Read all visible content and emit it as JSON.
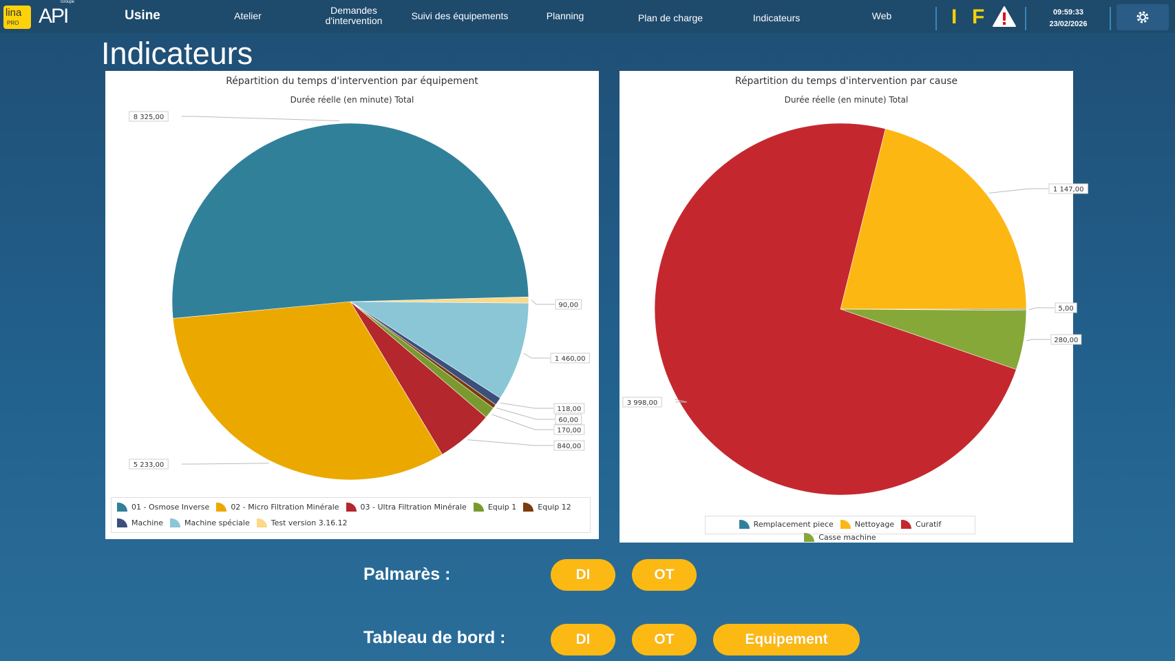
{
  "header": {
    "logo_lina": "lina",
    "logo_pro": "PRO",
    "logo_api": "API",
    "logo_groupe": "Groupe",
    "site": "Usine",
    "nav": [
      "Atelier",
      "Demandes d'intervention",
      "Suivi des équipements",
      "Planning",
      "Plan de charge",
      "Indicateurs",
      "Web"
    ],
    "flag_i": "I",
    "flag_f": "F",
    "time": "09:59:33",
    "date": "23/02/2026"
  },
  "page_title": "Indicateurs",
  "chart_data": [
    {
      "type": "pie",
      "title": "Répartition du temps d'intervention par équipement",
      "subtitle": "Durée réelle (en minute) Total",
      "categories": [
        "01 - Osmose Inverse",
        "02 - Micro Filtration Minérale",
        "03 - Ultra Filtration Minérale",
        "Equip 1",
        "Equip 12",
        "Machine",
        "Machine spéciale",
        "Test version 3.16.12"
      ],
      "values": [
        8325,
        5233,
        840,
        170,
        60,
        118,
        1460,
        90
      ],
      "labels": [
        "8 325,00",
        "5 233,00",
        "840,00",
        "170,00",
        "60,00",
        "118,00",
        "1 460,00",
        "90,00"
      ],
      "colors": [
        "#31809a",
        "#eba900",
        "#b3272d",
        "#7a9a2f",
        "#7b3b0c",
        "#3b4f7b",
        "#8ac6d6",
        "#fbd987"
      ],
      "legend": "bottom"
    },
    {
      "type": "pie",
      "title": "Répartition du temps d'intervention par cause",
      "subtitle": "Durée réelle (en minute) Total",
      "categories": [
        "Remplacement piece",
        "Nettoyage",
        "Curatif",
        "Casse machine"
      ],
      "values": [
        5,
        1147,
        3998,
        280
      ],
      "labels": [
        "5,00",
        "1 147,00",
        "3 998,00",
        "280,00"
      ],
      "colors": [
        "#31809a",
        "#fdb713",
        "#c4282e",
        "#86a838"
      ],
      "legend": "bottom"
    }
  ],
  "palmares": {
    "label": "Palmarès :",
    "di": "DI",
    "ot": "OT"
  },
  "tableau": {
    "label": "Tableau de bord :",
    "di": "DI",
    "ot": "OT",
    "equipement": "Equipement"
  }
}
